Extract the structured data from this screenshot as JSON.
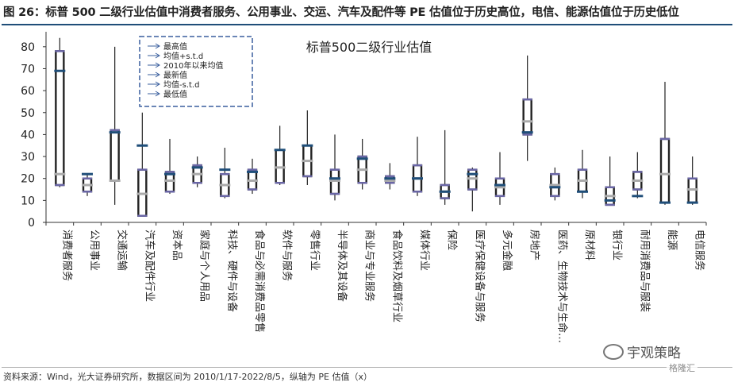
{
  "figure_title": "图 26：标普 500 二级行业估值中消费者服务、公用事业、交运、汽车及配件等 PE 估值位于历史高位，电信、能源估值位于历史低位",
  "source_note": "资料来源：Wind，光大证券研究所，数据区间为 2010/1/17-2022/8/5，纵轴为 PE 估值（x）",
  "watermark_text": "宇观策略",
  "badge_text": "格隆汇",
  "colors": {
    "box_fill": "#ffffff",
    "box_stroke": "#222222",
    "whisker": "#222222",
    "avg_mark": "#aaaaaa",
    "latest_mark": "#1f4e79",
    "std_mark": "#6a66a6",
    "legend_border": "#3a5f9e",
    "title_rule": "#1f4e79"
  },
  "chart_data": {
    "type": "box",
    "title": "标普500二级行业估值",
    "ylim": [
      0,
      85
    ],
    "yticks": [
      0,
      10,
      20,
      30,
      40,
      50,
      60,
      70,
      80
    ],
    "legend": {
      "placement": "top-left",
      "entries": [
        "最高值",
        "均值+s.t.d",
        "2010年以来均值",
        "最新值",
        "均值-s.t.d",
        "最低值"
      ]
    },
    "categories": [
      "消费者服务",
      "公用事业",
      "交通运输",
      "汽车及配件行业",
      "资本品",
      "家庭与个人用品",
      "科技、硬件与设备",
      "食品与必需消费品零售",
      "软件与服务",
      "零售行业",
      "半导体及其设备",
      "商业与专业服务",
      "食品饮料及烟草行业",
      "媒体行业",
      "保险",
      "医疗保健设备与服务",
      "多元金融",
      "房地产",
      "医药、生物技术与生命…",
      "原材料",
      "银行业",
      "耐用消费品与服装",
      "能源",
      "电信服务"
    ],
    "series": [
      {
        "name": "最高值",
        "values": [
          84,
          22,
          80,
          50,
          38,
          30,
          34,
          29,
          44,
          51,
          40,
          38,
          27,
          39,
          42,
          25,
          32,
          76,
          25,
          33,
          30,
          32,
          64,
          30
        ]
      },
      {
        "name": "均值+s.t.d",
        "values": [
          78,
          20,
          42,
          24,
          23,
          26,
          22,
          24,
          33,
          35,
          24,
          30,
          21,
          26,
          17,
          24,
          20,
          56,
          22,
          24,
          16,
          23,
          38,
          20
        ]
      },
      {
        "name": "2010年以来均值",
        "values": [
          22,
          17,
          19,
          13,
          19,
          22,
          17,
          19,
          25,
          28,
          19,
          24,
          19,
          20,
          14,
          20,
          16,
          46,
          17,
          19,
          12,
          19,
          22,
          15
        ]
      },
      {
        "name": "最新值",
        "values": [
          69,
          22,
          41,
          35,
          22,
          25,
          24,
          23,
          33,
          35,
          20,
          29,
          20,
          20,
          14,
          22,
          17,
          41,
          16,
          14,
          10,
          12,
          9,
          9
        ]
      },
      {
        "name": "均值-s.t.d",
        "values": [
          17,
          14,
          19,
          3,
          14,
          18,
          12,
          15,
          18,
          21,
          13,
          18,
          18,
          14,
          11,
          15,
          12,
          40,
          12,
          14,
          8,
          15,
          9,
          9
        ]
      },
      {
        "name": "最低值",
        "values": [
          16,
          12,
          8,
          3,
          13,
          16,
          11,
          13,
          17,
          17,
          10,
          15,
          15,
          12,
          8,
          5,
          8,
          28,
          10,
          11,
          8,
          11,
          8,
          8
        ]
      }
    ]
  }
}
